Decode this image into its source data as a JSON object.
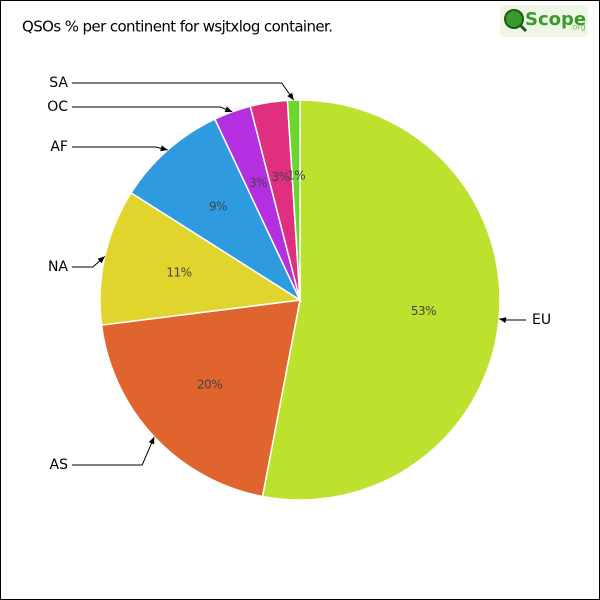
{
  "chart_data": {
    "type": "pie",
    "title": "QSOs % per continent for wsjtxlog container.",
    "logo": {
      "brand": "Scope",
      "suffix": ".org"
    },
    "categories": [
      "EU",
      "AS",
      "NA",
      "AF",
      "OC",
      null,
      "SA"
    ],
    "values": [
      53,
      20,
      11,
      9,
      3,
      3,
      1
    ],
    "value_labels": [
      "53%",
      "20%",
      "11%",
      "9%",
      "3%",
      "3%",
      "1%"
    ],
    "colors": [
      "#bde22e",
      "#e0642d",
      "#e1d52d",
      "#2e9ae0",
      "#b42fe0",
      "#e02f7e",
      "#6ad62e"
    ]
  }
}
